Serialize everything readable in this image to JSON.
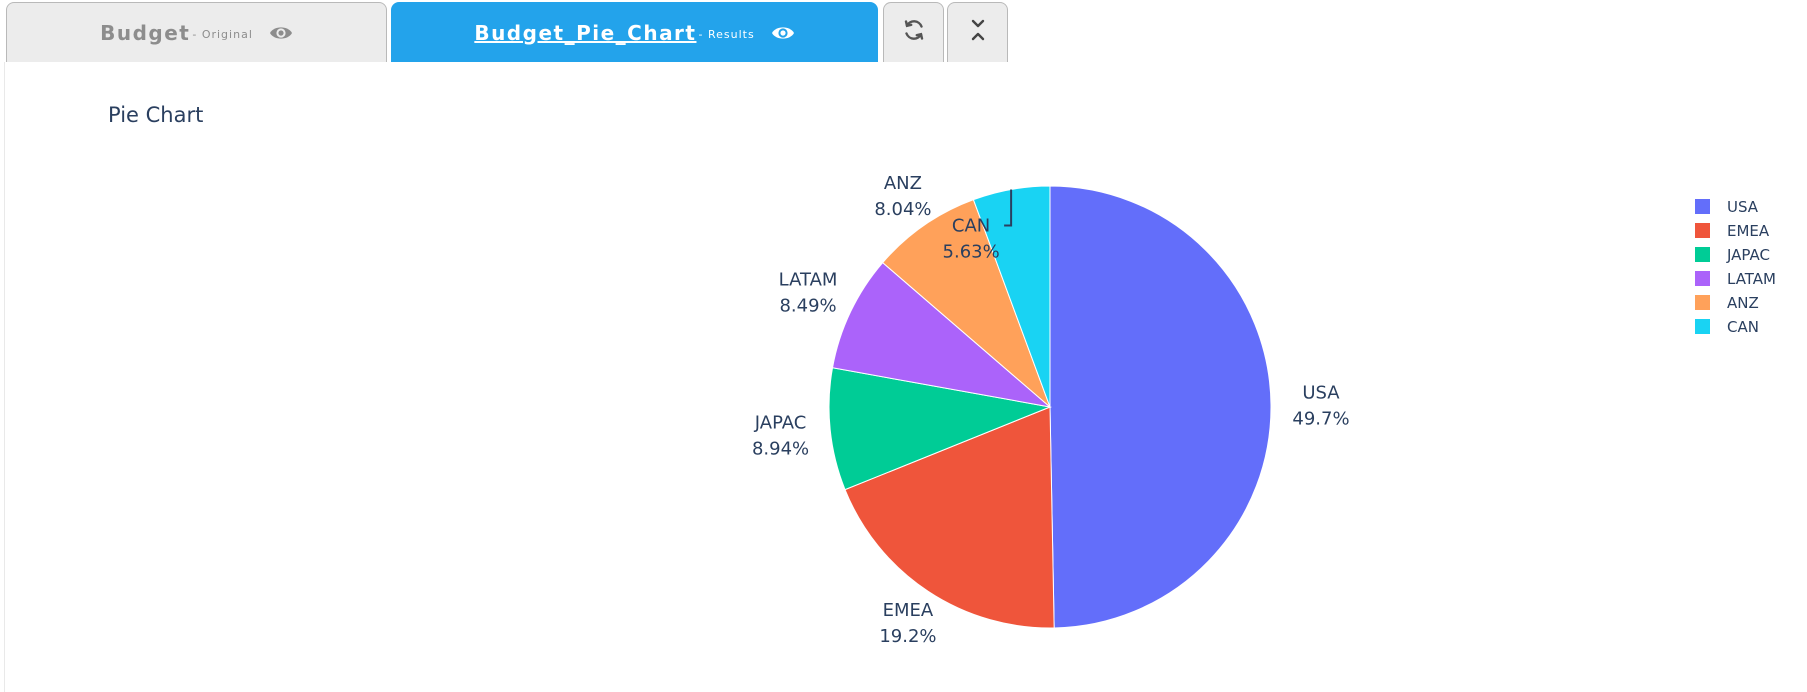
{
  "tabs": [
    {
      "label": "Budget",
      "suffix": "- Original",
      "icon": "eye-icon",
      "active": false
    },
    {
      "label": "Budget_Pie_Chart",
      "suffix": "- Results",
      "icon": "eye-icon",
      "active": true
    }
  ],
  "toolbar": {
    "refresh_icon": "refresh-icon",
    "collapse_icon": "collapse-icon"
  },
  "colors": {
    "tab_active": "#23a3eb",
    "tab_inactive": "#ececec",
    "text": "#2a3f5f"
  },
  "chart_data": {
    "type": "pie",
    "title": "Pie Chart",
    "categories": [
      "USA",
      "EMEA",
      "JAPAC",
      "LATAM",
      "ANZ",
      "CAN"
    ],
    "values": [
      49.7,
      19.2,
      8.94,
      8.49,
      8.04,
      5.63
    ],
    "labels": [
      "49.7%",
      "19.2%",
      "8.94%",
      "8.49%",
      "8.04%",
      "5.63%"
    ],
    "colors": [
      "#636efa",
      "#ef553b",
      "#00cc96",
      "#ab63fa",
      "#ffa15a",
      "#19d3f3"
    ],
    "legend": [
      "USA",
      "EMEA",
      "JAPAC",
      "LATAM",
      "ANZ",
      "CAN"
    ],
    "legend_position": "top-right"
  }
}
